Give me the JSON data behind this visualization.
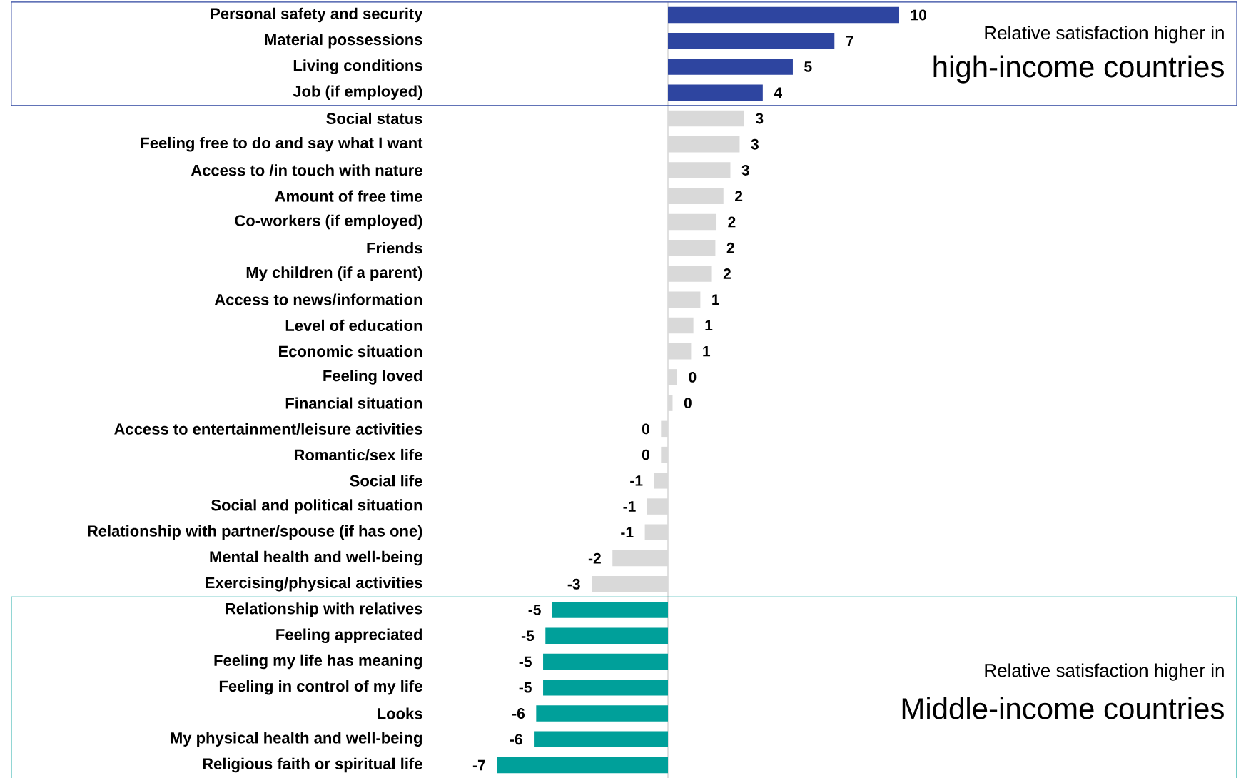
{
  "chart_data": {
    "type": "bar",
    "orientation": "horizontal",
    "tick_labels": "y",
    "categories": [
      "Personal safety and security",
      "Material possessions",
      "Living conditions",
      "Job (if employed)",
      "Social status",
      "Feeling free to do and say what I want",
      "Access to /in touch with nature",
      "Amount of free time",
      "Co-workers (if employed)",
      "Friends",
      "My children (if a parent)",
      "Access to news/information",
      "Level of education",
      "Economic situation",
      "Feeling loved",
      "Financial situation",
      "Access to entertainment/leisure activities",
      "Romantic/sex life",
      "Social life",
      "Social and political situation",
      "Relationship with partner/spouse (if has one)",
      "Mental health and well-being",
      "Exercising/physical activities",
      "Relationship with relatives",
      "Feeling appreciated",
      "Feeling my life has meaning",
      "Feeling in control of my life",
      "Looks",
      "My physical health and well-being",
      "Religious faith or spiritual life"
    ],
    "values": [
      10.0,
      7.2,
      5.4,
      4.1,
      3.3,
      3.1,
      2.7,
      2.4,
      2.1,
      2.05,
      1.9,
      1.4,
      1.1,
      1.0,
      0.4,
      0.2,
      -0.3,
      -0.3,
      -0.6,
      -0.9,
      -1.0,
      -2.4,
      -3.3,
      -5.0,
      -5.3,
      -5.4,
      -5.4,
      -5.7,
      -5.8,
      -7.4
    ],
    "value_labels": [
      "10",
      "7",
      "5",
      "4",
      "3",
      "3",
      "3",
      "2",
      "2",
      "2",
      "2",
      "1",
      "1",
      "1",
      "0",
      "0",
      "0",
      "0",
      "-1",
      "-1",
      "-1",
      "-2",
      "-3",
      "-5",
      "-5",
      "-5",
      "-5",
      "-6",
      "-6",
      "-7"
    ],
    "colors": [
      "#2e45a0",
      "#2e45a0",
      "#2e45a0",
      "#2e45a0",
      "#d9d9d9",
      "#d9d9d9",
      "#d9d9d9",
      "#d9d9d9",
      "#d9d9d9",
      "#d9d9d9",
      "#d9d9d9",
      "#d9d9d9",
      "#d9d9d9",
      "#d9d9d9",
      "#d9d9d9",
      "#d9d9d9",
      "#d9d9d9",
      "#d9d9d9",
      "#d9d9d9",
      "#d9d9d9",
      "#d9d9d9",
      "#d9d9d9",
      "#d9d9d9",
      "#00a09a",
      "#00a09a",
      "#00a09a",
      "#00a09a",
      "#00a09a",
      "#00a09a",
      "#00a09a"
    ],
    "annotations": [
      "Relative satisfaction higher in",
      "high-income countries",
      "Relative satisfaction higher in",
      "Middle-income countries"
    ]
  }
}
